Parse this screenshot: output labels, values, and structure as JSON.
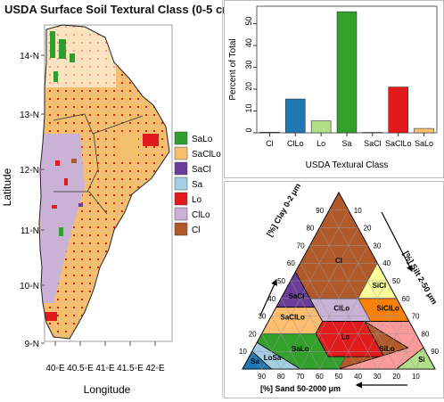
{
  "map": {
    "title": "USDA Surface Soil Textural Class (0-5 cm)",
    "xlabel": "Longitude",
    "ylabel": "Latitude",
    "x_ticks": [
      "40◦E",
      "40.5◦E",
      "41◦E",
      "41.5◦E",
      "42◦E"
    ],
    "y_ticks": [
      "14◦N",
      "13◦N",
      "12◦N",
      "11◦N",
      "10◦N",
      "9◦N"
    ],
    "legend": [
      {
        "label": "SaLo",
        "color": "#2e9e2e"
      },
      {
        "label": "SaClLo",
        "color": "#f5c06e"
      },
      {
        "label": "SaCl",
        "color": "#6a3d9a"
      },
      {
        "label": "Sa",
        "color": "#a6cee3"
      },
      {
        "label": "Lo",
        "color": "#e31a1c"
      },
      {
        "label": "ClLo",
        "color": "#cab2d6"
      },
      {
        "label": "Cl",
        "color": "#b15928"
      }
    ]
  },
  "chart_data": [
    {
      "type": "bar",
      "categories": [
        "Cl",
        "ClLo",
        "Lo",
        "Sa",
        "SaCl",
        "SaClLo",
        "SaLo"
      ],
      "values": [
        0.3,
        15.5,
        5.5,
        55.5,
        0.2,
        21,
        2
      ],
      "colors": [
        "#b15928",
        "#1f78b4",
        "#b2df8a",
        "#33a02c",
        "#fb9a99",
        "#e31a1c",
        "#fdbf6f"
      ],
      "xlabel": "USDA Textural Class",
      "ylabel": "Percent of Total",
      "ylim": [
        0,
        58
      ],
      "yticks": [
        "0",
        "10",
        "20",
        "30",
        "40",
        "50"
      ]
    }
  ],
  "triangle": {
    "axis_clay": "[%] Clay 0-2 μm",
    "axis_silt": "[%] Silt 2-50 μm",
    "axis_sand": "[%] Sand 50-2000 μm",
    "ticks": [
      "10",
      "20",
      "30",
      "40",
      "50",
      "60",
      "70",
      "80",
      "90"
    ],
    "class_labels": [
      "Cl",
      "SaCl",
      "SiCl",
      "ClLo",
      "SiClLo",
      "SaClLo",
      "Lo",
      "SiLo",
      "Si",
      "Sa",
      "LoSa",
      "SaLo"
    ],
    "region_colors": {
      "Cl": "#b15928",
      "SaCl": "#6a3d9a",
      "SiCl": "#ffff99",
      "SiClLo": "#ff7f00",
      "ClLo": "#cab2d6",
      "SaClLo": "#fdbf6f",
      "Lo": "#e31a1c",
      "SiLo": "#fb9a99",
      "Si": "#b2df8a",
      "SaLo": "#33a02c",
      "LoSa": "#a6cee3",
      "Sa": "#1f78b4"
    }
  }
}
